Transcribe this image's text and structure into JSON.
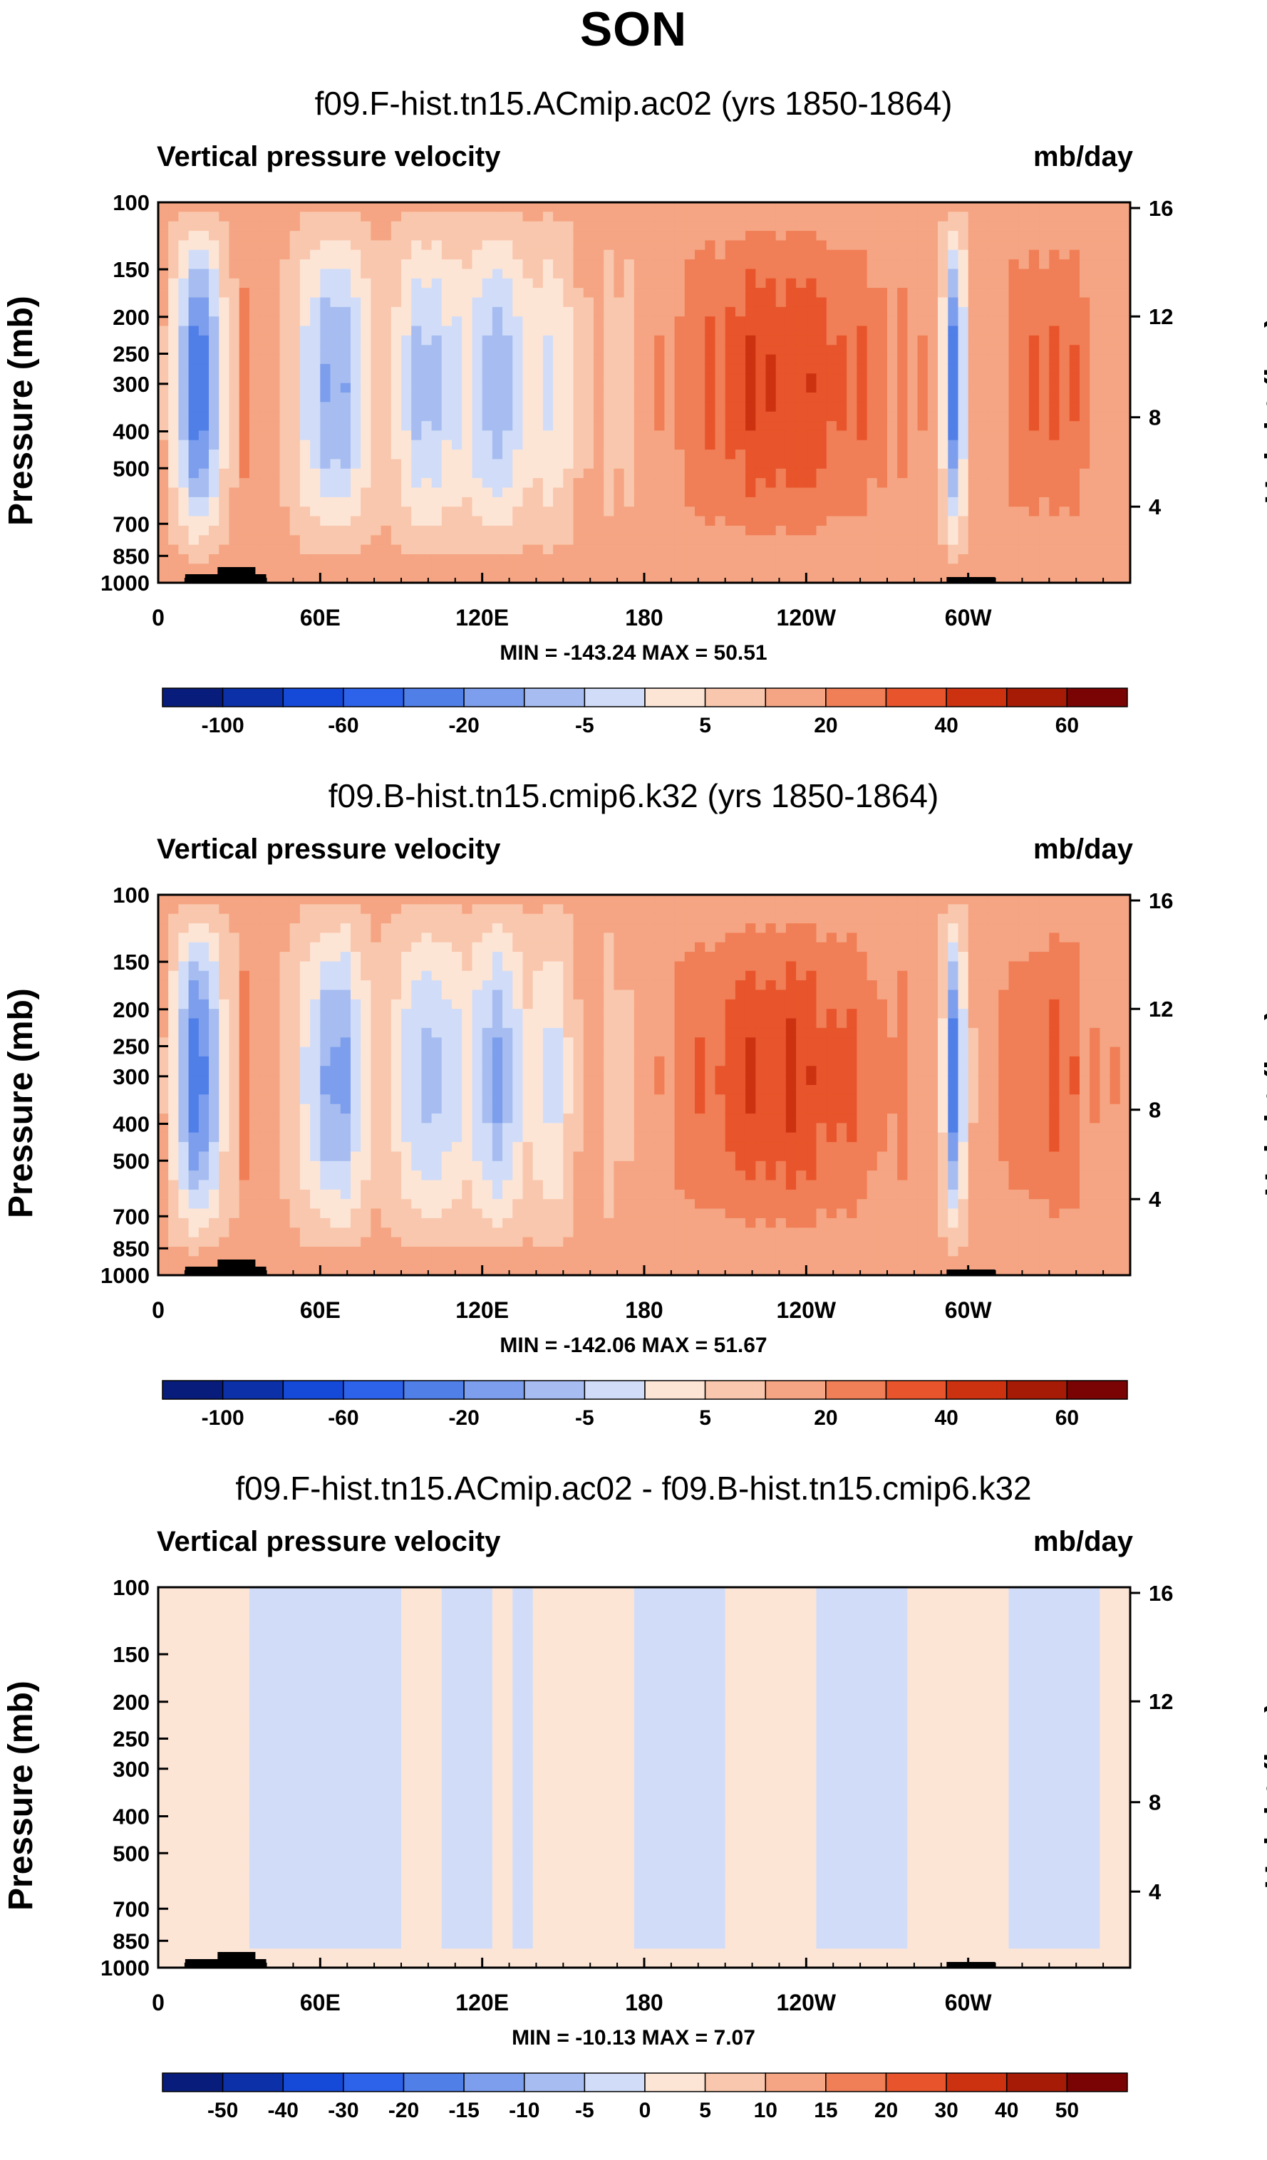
{
  "title": "SON",
  "colors": {
    "cbar13": [
      "#081d7b",
      "#0b30a7",
      "#1549d8",
      "#2d62ea",
      "#507fe8",
      "#7c9eec",
      "#a7bdf1",
      "#d1ddf8",
      "#fde5d6",
      "#f9c7ad",
      "#f5a583",
      "#f07e56",
      "#e8542b",
      "#cc3110",
      "#a51b06",
      "#7a0403"
    ],
    "cbarDiff": [
      "#081d7b",
      "#0b30a7",
      "#1549d8",
      "#2d62ea",
      "#507fe8",
      "#7c9eec",
      "#a7bdf1",
      "#d1ddf8",
      "#fde5d6",
      "#f9c7ad",
      "#f5a583",
      "#f07e56",
      "#e8542b",
      "#cc3110",
      "#a51b06",
      "#7a0403"
    ]
  },
  "panels": [
    {
      "title": "f09.F-hist.tn15.ACmip.ac02 (yrs 1850-1864)",
      "variable": "Vertical pressure velocity",
      "units": "mb/day",
      "ylabel": "Pressure (mb)",
      "ylabel_right": "Height (km)",
      "minmax": "MIN = -143.24  MAX =  50.51",
      "chart_data": {
        "type": "heatmap",
        "x_ticks": [
          "0",
          "60E",
          "120E",
          "180",
          "120W",
          "60W"
        ],
        "y_ticks": [
          "100",
          "150",
          "200",
          "250",
          "300",
          "400",
          "500",
          "700",
          "850",
          "1000"
        ],
        "y_right_ticks": [
          "16",
          "12",
          "8",
          "4"
        ],
        "colorbar_labels": [
          "-100",
          "-60",
          "-20",
          "-5",
          "5",
          "20",
          "40",
          "60"
        ],
        "colorbar_levels": [
          -120,
          -100,
          -80,
          -60,
          -40,
          -20,
          -10,
          -5,
          0,
          5,
          10,
          20,
          30,
          40,
          50,
          60,
          70
        ],
        "min": -143.24,
        "max": 50.51,
        "xlim": [
          0,
          360
        ],
        "ylim": [
          1000,
          100
        ]
      }
    },
    {
      "title": "f09.B-hist.tn15.cmip6.k32 (yrs 1850-1864)",
      "variable": "Vertical pressure velocity",
      "units": "mb/day",
      "ylabel": "Pressure (mb)",
      "ylabel_right": "Height (km)",
      "minmax": "MIN = -142.06  MAX =  51.67",
      "chart_data": {
        "type": "heatmap",
        "x_ticks": [
          "0",
          "60E",
          "120E",
          "180",
          "120W",
          "60W"
        ],
        "y_ticks": [
          "100",
          "150",
          "200",
          "250",
          "300",
          "400",
          "500",
          "700",
          "850",
          "1000"
        ],
        "y_right_ticks": [
          "16",
          "12",
          "8",
          "4"
        ],
        "colorbar_labels": [
          "-100",
          "-60",
          "-20",
          "-5",
          "5",
          "20",
          "40",
          "60"
        ],
        "colorbar_levels": [
          -120,
          -100,
          -80,
          -60,
          -40,
          -20,
          -10,
          -5,
          0,
          5,
          10,
          20,
          30,
          40,
          50,
          60,
          70
        ],
        "min": -142.06,
        "max": 51.67,
        "xlim": [
          0,
          360
        ],
        "ylim": [
          1000,
          100
        ]
      }
    },
    {
      "title": "f09.F-hist.tn15.ACmip.ac02 - f09.B-hist.tn15.cmip6.k32",
      "variable": "Vertical pressure velocity",
      "units": "mb/day",
      "ylabel": "Pressure (mb)",
      "ylabel_right": "Height (km)",
      "minmax": "MIN = -10.13  MAX =  7.07",
      "chart_data": {
        "type": "heatmap",
        "x_ticks": [
          "0",
          "60E",
          "120E",
          "180",
          "120W",
          "60W"
        ],
        "y_ticks": [
          "100",
          "150",
          "200",
          "250",
          "300",
          "400",
          "500",
          "700",
          "850",
          "1000"
        ],
        "y_right_ticks": [
          "16",
          "12",
          "8",
          "4"
        ],
        "colorbar_labels": [
          "-50",
          "-40",
          "-30",
          "-20",
          "-15",
          "-10",
          "-5",
          "0",
          "5",
          "10",
          "15",
          "20",
          "30",
          "40",
          "50"
        ],
        "colorbar_levels": [
          -60,
          -50,
          -40,
          -30,
          -20,
          -15,
          -10,
          -5,
          0,
          5,
          10,
          15,
          20,
          30,
          40,
          50,
          60
        ],
        "min": -10.13,
        "max": 7.07,
        "xlim": [
          0,
          360
        ],
        "ylim": [
          1000,
          100
        ]
      }
    }
  ]
}
